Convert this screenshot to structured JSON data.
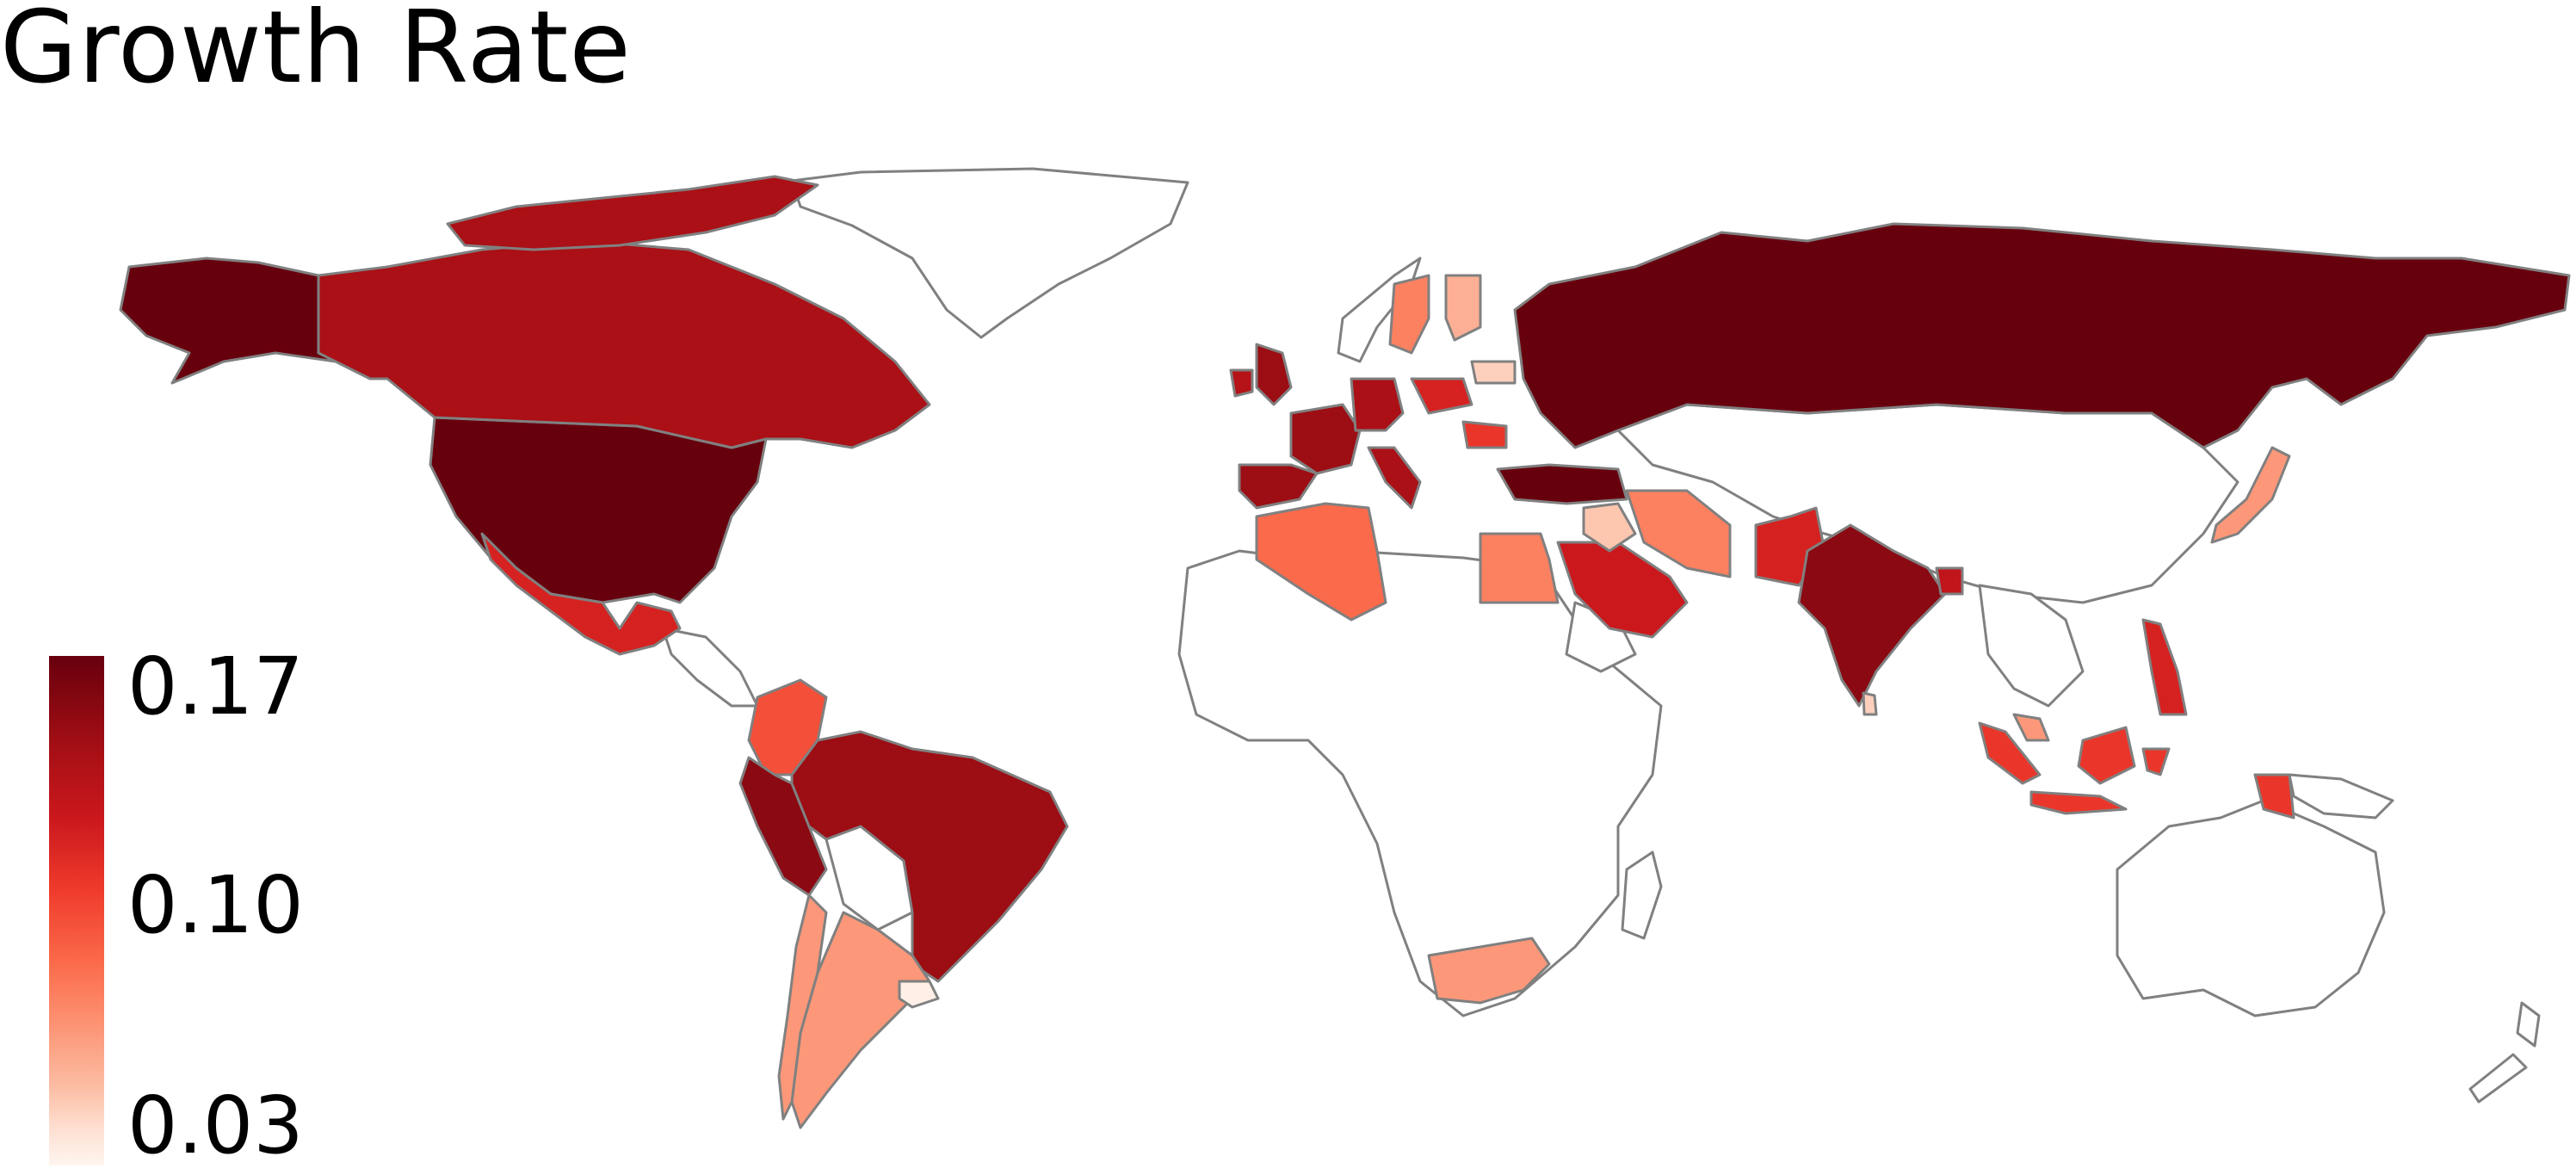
{
  "title": "Growth Rate",
  "legend": {
    "ticks": [
      "0.17",
      "0.10",
      "0.03"
    ],
    "min": 0.03,
    "max": 0.17,
    "colormap": "Reds"
  },
  "colors": {
    "border": "#808080",
    "no_data": "#ffffff",
    "scale": [
      "#fff5f0",
      "#fee0d2",
      "#fcbba1",
      "#fc9272",
      "#fb6a4a",
      "#ef3b2c",
      "#cb181d",
      "#a50f15",
      "#67000d"
    ]
  },
  "chart_data": {
    "type": "choropleth",
    "title": "Growth Rate",
    "legend_position": "bottom-left",
    "value_range": [
      0.03,
      0.17
    ],
    "colorbar_ticks": [
      0.17,
      0.1,
      0.03
    ],
    "regions": [
      {
        "name": "United States",
        "value": 0.17
      },
      {
        "name": "Russia",
        "value": 0.17
      },
      {
        "name": "India",
        "value": 0.16
      },
      {
        "name": "Turkey",
        "value": 0.17
      },
      {
        "name": "Peru",
        "value": 0.16
      },
      {
        "name": "Brazil",
        "value": 0.155
      },
      {
        "name": "Canada",
        "value": 0.15
      },
      {
        "name": "United Kingdom",
        "value": 0.155
      },
      {
        "name": "France",
        "value": 0.155
      },
      {
        "name": "Spain",
        "value": 0.155
      },
      {
        "name": "Italy",
        "value": 0.15
      },
      {
        "name": "Germany",
        "value": 0.15
      },
      {
        "name": "Ireland",
        "value": 0.145
      },
      {
        "name": "Saudi Arabia",
        "value": 0.135
      },
      {
        "name": "Mexico",
        "value": 0.13
      },
      {
        "name": "Pakistan",
        "value": 0.13
      },
      {
        "name": "Poland",
        "value": 0.13
      },
      {
        "name": "Indonesia",
        "value": 0.12
      },
      {
        "name": "Philippines",
        "value": 0.13
      },
      {
        "name": "Bangladesh",
        "value": 0.14
      },
      {
        "name": "Romania",
        "value": 0.12
      },
      {
        "name": "Colombia",
        "value": 0.11
      },
      {
        "name": "Algeria",
        "value": 0.1
      },
      {
        "name": "Iran",
        "value": 0.09
      },
      {
        "name": "Egypt",
        "value": 0.09
      },
      {
        "name": "Sweden",
        "value": 0.09
      },
      {
        "name": "Argentina",
        "value": 0.08
      },
      {
        "name": "South Africa",
        "value": 0.08
      },
      {
        "name": "Japan",
        "value": 0.08
      },
      {
        "name": "Malaysia",
        "value": 0.08
      },
      {
        "name": "Finland",
        "value": 0.07
      },
      {
        "name": "Iraq",
        "value": 0.06
      },
      {
        "name": "Belarus",
        "value": 0.055
      },
      {
        "name": "Sri Lanka",
        "value": 0.055
      },
      {
        "name": "Uruguay",
        "value": 0.035
      }
    ]
  }
}
